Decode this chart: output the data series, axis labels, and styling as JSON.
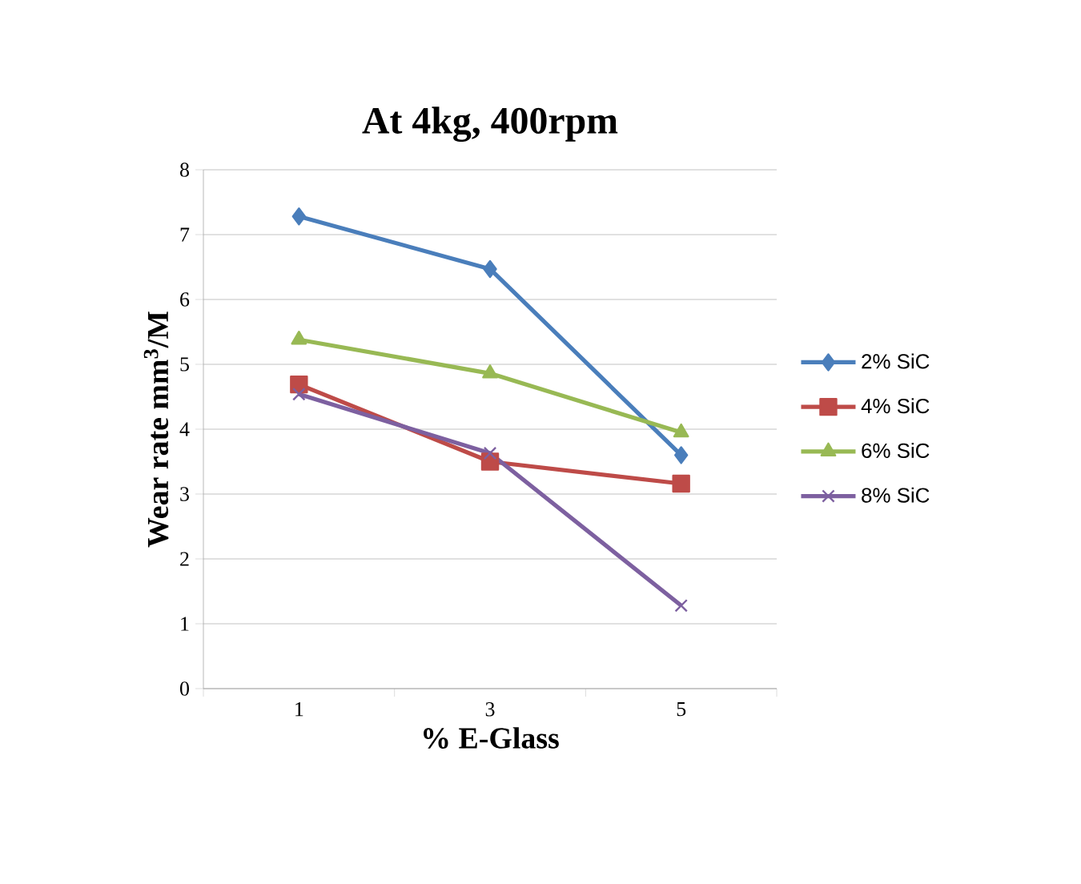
{
  "chart_data": {
    "type": "line",
    "title": "At 4kg, 400rpm",
    "xlabel": "% E-Glass",
    "ylabel": "Wear rate mm$^{3}$/M",
    "categories": [
      "1",
      "3",
      "5"
    ],
    "series": [
      {
        "name": "2% SiC",
        "color": "#4a7ebb",
        "marker": "diamond",
        "values": [
          7.28,
          6.47,
          3.6
        ]
      },
      {
        "name": "4% SiC",
        "color": "#be4b48",
        "marker": "square",
        "values": [
          4.69,
          3.5,
          3.16
        ]
      },
      {
        "name": "6% SiC",
        "color": "#98b954",
        "marker": "triangle",
        "values": [
          5.38,
          4.86,
          3.95
        ]
      },
      {
        "name": "8% SiC",
        "color": "#7d60a0",
        "marker": "cross",
        "values": [
          4.54,
          3.63,
          1.28
        ]
      }
    ],
    "ylim": [
      0,
      8
    ],
    "yticks": [
      0,
      1,
      2,
      3,
      4,
      5,
      6,
      7,
      8
    ],
    "grid": "y",
    "legend": "right",
    "line_style": "solid"
  }
}
